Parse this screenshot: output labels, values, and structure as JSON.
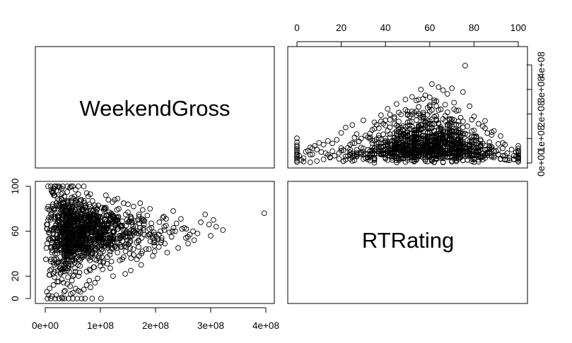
{
  "chart_data": {
    "type": "scatter",
    "layout": "pairs",
    "variables": [
      "WeekendGross",
      "RTRating"
    ],
    "panels": [
      {
        "id": "rtrating-vs-weekendgross",
        "x_variable": "RTRating",
        "y_variable": "WeekendGross",
        "xlim": [
          0,
          100
        ],
        "ylim": [
          0,
          400000000
        ],
        "x_ticks": [
          0,
          20,
          40,
          60,
          80,
          100
        ],
        "x_tick_labels": [
          "0",
          "20",
          "40",
          "60",
          "80",
          "100"
        ],
        "y_ticks": [
          0,
          100000000,
          200000000,
          300000000,
          400000000
        ],
        "y_tick_labels": [
          "0e+00",
          "1e+08",
          "2e+08",
          "3e+08",
          "4e+08"
        ],
        "x_axis_side": "top",
        "y_axis_side": "right",
        "point_shape": "open-circle"
      },
      {
        "id": "weekendgross-vs-rtrating",
        "x_variable": "WeekendGross",
        "y_variable": "RTRating",
        "xlim": [
          0,
          400000000
        ],
        "ylim": [
          0,
          100
        ],
        "x_ticks": [
          0,
          100000000,
          200000000,
          300000000,
          400000000
        ],
        "x_tick_labels": [
          "0e+00",
          "1e+08",
          "2e+08",
          "3e+08",
          "4e+08"
        ],
        "y_ticks": [
          0,
          20,
          60,
          100
        ],
        "y_tick_labels": [
          "0",
          "20",
          "60",
          "100"
        ],
        "x_axis_side": "bottom",
        "y_axis_side": "left",
        "point_shape": "open-circle"
      }
    ],
    "points": {
      "note_fields": [
        "RTRating",
        "WeekendGross"
      ],
      "values": [
        [
          76,
          397000000
        ],
        [
          61,
          322000000
        ],
        [
          64,
          310000000
        ],
        [
          70,
          305000000
        ],
        [
          56,
          300000000
        ],
        [
          66,
          297000000
        ],
        [
          75,
          290000000
        ],
        [
          68,
          282000000
        ],
        [
          58,
          276000000
        ],
        [
          52,
          270000000
        ],
        [
          60,
          268000000
        ],
        [
          57,
          262000000
        ],
        [
          49,
          259000000
        ],
        [
          54,
          255000000
        ],
        [
          63,
          252000000
        ],
        [
          62,
          248000000
        ],
        [
          71,
          246000000
        ],
        [
          45,
          241000000
        ],
        [
          67,
          238000000
        ],
        [
          78,
          232000000
        ],
        [
          55,
          229000000
        ],
        [
          59,
          225000000
        ],
        [
          41,
          221000000
        ],
        [
          65,
          219000000
        ],
        [
          61,
          216000000
        ],
        [
          72,
          213000000
        ],
        [
          38,
          195000000
        ],
        [
          80,
          190000000
        ],
        [
          74,
          185000000
        ],
        [
          30,
          174000000
        ],
        [
          35,
          166000000
        ],
        [
          25,
          155000000
        ],
        [
          84,
          150000000
        ],
        [
          22,
          145000000
        ],
        [
          89,
          131000000
        ],
        [
          85,
          172000000
        ],
        [
          82,
          160000000
        ],
        [
          92,
          110000000
        ],
        [
          27,
          118000000
        ],
        [
          20,
          123000000
        ],
        [
          31,
          112000000
        ],
        [
          26,
          104000000
        ],
        [
          18,
          95000000
        ],
        [
          14,
          90000000
        ],
        [
          16,
          80000000
        ],
        [
          10,
          82000000
        ],
        [
          12,
          75000000
        ],
        [
          8,
          70000000
        ],
        [
          7,
          60000000
        ],
        [
          6,
          64000000
        ],
        [
          9,
          55000000
        ],
        [
          5,
          50000000
        ],
        [
          4,
          46000000
        ],
        [
          11,
          45000000
        ],
        [
          13,
          40000000
        ],
        [
          0,
          101000000
        ],
        [
          0,
          85000000
        ],
        [
          0,
          72000000
        ],
        [
          0,
          66000000
        ],
        [
          0,
          58000000
        ],
        [
          0,
          50000000
        ],
        [
          0,
          42000000
        ],
        [
          0,
          35000000
        ],
        [
          0,
          25000000
        ],
        [
          0,
          18000000
        ],
        [
          0,
          10000000
        ],
        [
          0,
          4000000
        ],
        [
          1,
          30000000
        ],
        [
          2,
          12000000
        ],
        [
          3,
          20000000
        ],
        [
          100,
          70000000
        ],
        [
          100,
          60000000
        ],
        [
          100,
          50000000
        ],
        [
          100,
          40000000
        ],
        [
          100,
          32000000
        ],
        [
          100,
          25000000
        ],
        [
          100,
          18000000
        ],
        [
          100,
          10000000
        ],
        [
          100,
          5000000
        ],
        [
          99,
          45000000
        ],
        [
          98,
          30000000
        ],
        [
          97,
          55000000
        ],
        [
          96,
          20000000
        ],
        [
          95,
          40000000
        ],
        [
          94,
          15000000
        ],
        [
          93,
          60000000
        ],
        [
          91,
          35000000
        ],
        [
          90,
          48000000
        ],
        [
          88,
          25000000
        ],
        [
          87,
          70000000
        ],
        [
          86,
          40000000
        ],
        [
          83,
          90000000
        ],
        [
          81,
          110000000
        ],
        [
          79,
          130000000
        ],
        [
          77,
          150000000
        ],
        [
          73,
          170000000
        ],
        [
          69,
          180000000
        ],
        [
          53,
          205000000
        ],
        [
          50,
          210000000
        ],
        [
          47,
          198000000
        ],
        [
          44,
          188000000
        ],
        [
          42,
          176000000
        ],
        [
          39,
          160000000
        ],
        [
          37,
          142000000
        ],
        [
          34,
          135000000
        ],
        [
          33,
          120000000
        ],
        [
          29,
          100000000
        ],
        [
          28,
          88000000
        ],
        [
          24,
          75000000
        ],
        [
          23,
          62000000
        ],
        [
          21,
          52000000
        ],
        [
          19,
          41000000
        ],
        [
          17,
          30000000
        ],
        [
          15,
          22000000
        ],
        [
          12,
          15000000
        ],
        [
          9,
          8000000
        ],
        [
          6,
          3000000
        ],
        [
          3,
          6000000
        ],
        [
          58,
          8000000
        ],
        [
          62,
          3000000
        ],
        [
          45,
          2000000
        ],
        [
          70,
          5000000
        ],
        [
          80,
          4000000
        ],
        [
          35,
          1000000
        ],
        [
          50,
          12000000
        ]
      ]
    }
  }
}
